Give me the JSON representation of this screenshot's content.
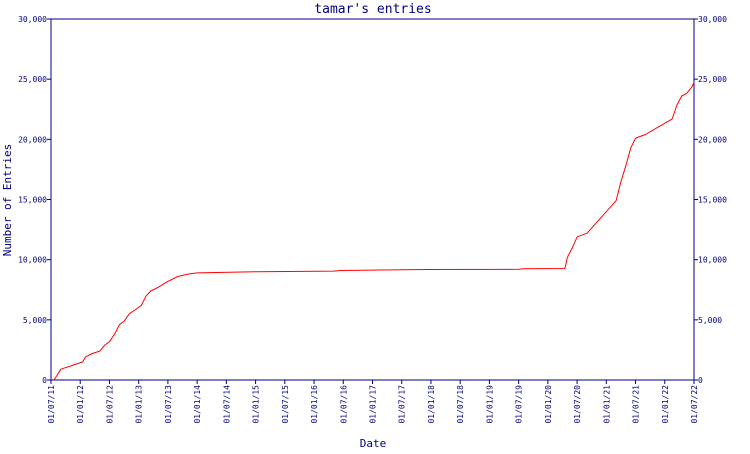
{
  "chart_data": {
    "type": "line",
    "title": "tamar's entries",
    "xlabel": "Date",
    "ylabel": "Number of Entries",
    "ylim": [
      0,
      30000
    ],
    "y_ticks": [
      {
        "value": 0,
        "label": "0"
      },
      {
        "value": 5000,
        "label": "5,000"
      },
      {
        "value": 10000,
        "label": "10,000"
      },
      {
        "value": 15000,
        "label": "15,000"
      },
      {
        "value": 20000,
        "label": "20,000"
      },
      {
        "value": 25000,
        "label": "25,000"
      },
      {
        "value": 30000,
        "label": "30,000"
      }
    ],
    "x_range": [
      "2011-07-01",
      "2022-07-01"
    ],
    "x_ticks": [
      "01/07/11",
      "01/01/12",
      "01/07/12",
      "01/01/13",
      "01/07/13",
      "01/01/14",
      "01/07/14",
      "01/01/15",
      "01/07/15",
      "01/01/16",
      "01/07/16",
      "01/01/17",
      "01/07/17",
      "01/01/18",
      "01/07/18",
      "01/01/19",
      "01/07/19",
      "01/01/20",
      "01/07/20",
      "01/01/21",
      "01/07/21",
      "01/01/22",
      "01/07/22"
    ],
    "grid": false,
    "series": [
      {
        "color": "#ff0000",
        "points": [
          [
            "2011-07-20",
            0
          ],
          [
            "2011-09-01",
            900
          ],
          [
            "2011-12-01",
            1300
          ],
          [
            "2012-01-15",
            1500
          ],
          [
            "2012-02-01",
            1900
          ],
          [
            "2012-03-15",
            2200
          ],
          [
            "2012-05-01",
            2400
          ],
          [
            "2012-06-01",
            2900
          ],
          [
            "2012-07-01",
            3200
          ],
          [
            "2012-08-01",
            3800
          ],
          [
            "2012-09-01",
            4600
          ],
          [
            "2012-10-01",
            4900
          ],
          [
            "2012-11-01",
            5500
          ],
          [
            "2012-12-15",
            5900
          ],
          [
            "2013-01-15",
            6200
          ],
          [
            "2013-02-15",
            7000
          ],
          [
            "2013-03-15",
            7400
          ],
          [
            "2013-05-01",
            7700
          ],
          [
            "2013-07-01",
            8200
          ],
          [
            "2013-09-01",
            8600
          ],
          [
            "2013-11-01",
            8800
          ],
          [
            "2014-01-01",
            8900
          ],
          [
            "2015-01-01",
            9000
          ],
          [
            "2016-05-01",
            9050
          ],
          [
            "2016-06-15",
            9100
          ],
          [
            "2017-12-01",
            9180
          ],
          [
            "2019-07-01",
            9200
          ],
          [
            "2019-08-01",
            9250
          ],
          [
            "2020-04-15",
            9270
          ],
          [
            "2020-05-01",
            10200
          ],
          [
            "2020-06-01",
            11000
          ],
          [
            "2020-07-01",
            11900
          ],
          [
            "2020-09-01",
            12200
          ],
          [
            "2021-03-01",
            14900
          ],
          [
            "2021-04-01",
            16500
          ],
          [
            "2021-05-01",
            17800
          ],
          [
            "2021-06-01",
            19300
          ],
          [
            "2021-07-01",
            20100
          ],
          [
            "2021-09-01",
            20400
          ],
          [
            "2022-02-15",
            21700
          ],
          [
            "2022-03-15",
            22800
          ],
          [
            "2022-04-15",
            23600
          ],
          [
            "2022-05-15",
            23800
          ],
          [
            "2022-06-15",
            24300
          ],
          [
            "2022-07-01",
            24700
          ]
        ]
      }
    ]
  }
}
